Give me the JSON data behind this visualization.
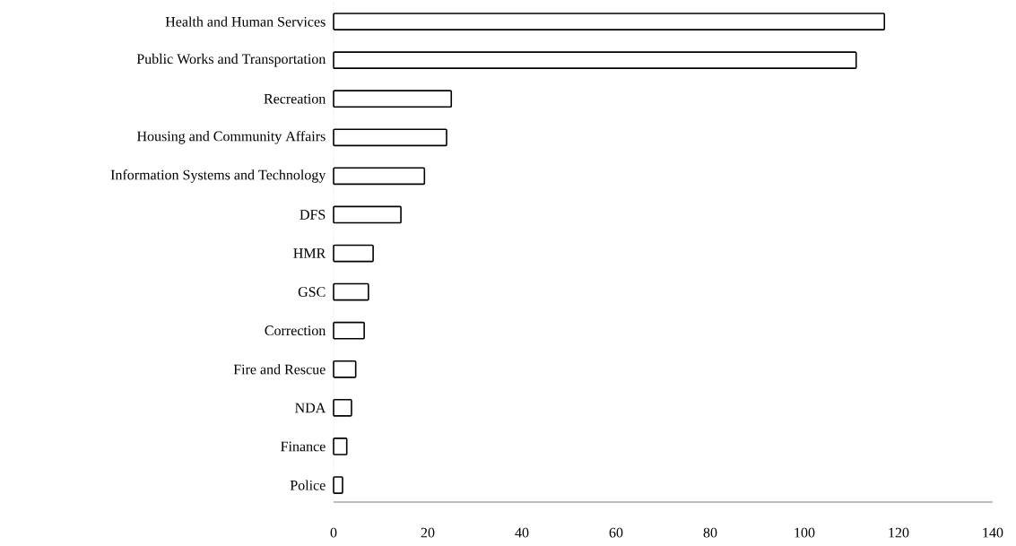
{
  "chart_data": {
    "type": "bar",
    "orientation": "horizontal",
    "categories": [
      "Health and Human Services",
      "Public Works and Transportation",
      "Recreation",
      "Housing and Community Affairs",
      "Information Systems and Technology",
      "DFS",
      "HMR",
      "GSC",
      "Correction",
      "Fire and Rescue",
      "NDA",
      "Finance",
      "Police"
    ],
    "values": [
      117,
      111,
      25,
      24,
      19.3,
      14.3,
      8.4,
      7.4,
      6.5,
      4.7,
      3.8,
      2.8,
      1.9
    ],
    "color": "#ffffff",
    "xlim": [
      0,
      140
    ],
    "xticks": [
      0,
      20,
      40,
      60,
      80,
      100,
      120,
      140
    ]
  }
}
